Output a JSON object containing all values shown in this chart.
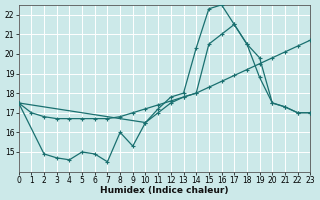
{
  "xlabel": "Humidex (Indice chaleur)",
  "bg_color": "#cce9e9",
  "grid_color": "#b8d8d8",
  "line_color": "#1a7070",
  "xlim": [
    0,
    23
  ],
  "ylim": [
    14.0,
    22.5
  ],
  "yticks": [
    15,
    16,
    17,
    18,
    19,
    20,
    21,
    22
  ],
  "xticks": [
    0,
    1,
    2,
    3,
    4,
    5,
    6,
    7,
    8,
    9,
    10,
    11,
    12,
    13,
    14,
    15,
    16,
    17,
    18,
    19,
    20,
    21,
    22,
    23
  ],
  "line_smooth_x": [
    0,
    1,
    2,
    3,
    4,
    5,
    6,
    7,
    8,
    9,
    10,
    11,
    12,
    13,
    14,
    15,
    16,
    17,
    18,
    19,
    20,
    21,
    22,
    23
  ],
  "line_smooth_y": [
    17.5,
    17.0,
    16.8,
    16.7,
    16.7,
    16.7,
    16.7,
    16.7,
    16.8,
    17.0,
    17.2,
    17.4,
    17.6,
    17.8,
    18.0,
    18.3,
    18.6,
    18.9,
    19.2,
    19.5,
    19.8,
    20.1,
    20.4,
    20.7
  ],
  "line_peak_x": [
    0,
    2,
    3,
    4,
    5,
    6,
    7,
    8,
    9,
    10,
    11,
    12,
    13,
    14,
    15,
    16,
    17,
    18,
    19,
    20,
    21,
    22,
    23
  ],
  "line_peak_y": [
    17.5,
    14.9,
    14.7,
    14.6,
    15.0,
    14.9,
    14.5,
    16.0,
    15.3,
    16.5,
    17.2,
    17.8,
    18.0,
    20.3,
    22.3,
    22.5,
    21.5,
    20.5,
    18.8,
    17.5,
    17.3,
    17.0,
    17.0
  ],
  "line_diag_x": [
    0,
    10,
    11,
    12,
    13,
    14,
    15,
    16,
    17,
    18,
    19,
    20,
    21,
    22,
    23
  ],
  "line_diag_y": [
    17.5,
    16.5,
    17.0,
    17.5,
    17.8,
    18.0,
    20.5,
    21.0,
    21.5,
    20.5,
    19.8,
    17.5,
    17.3,
    17.0,
    17.0
  ]
}
